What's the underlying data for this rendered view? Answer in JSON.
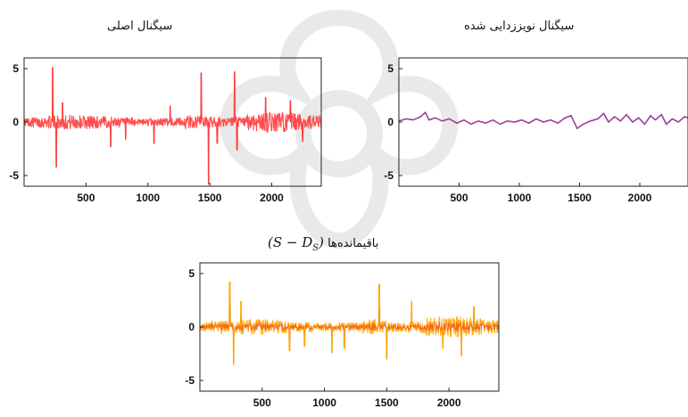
{
  "titles": {
    "original": "سیگنال اصلی",
    "denoised": "سیگنال نویززدایی شده",
    "residual_text": "باقیمانده‌ها",
    "residual_formula": "(S − D",
    "residual_formula_sub": "S",
    "residual_formula_close": ")"
  },
  "chart_data": [
    {
      "type": "line",
      "id": "original",
      "title": "سیگنال اصلی",
      "xticks": [
        500,
        1000,
        1500,
        2000
      ],
      "yticks": [
        -5,
        0,
        5
      ],
      "xlim": [
        0,
        2400
      ],
      "ylim": [
        -6,
        6
      ],
      "color": "#e8141c",
      "fill_color": "#ff3b3b",
      "noise_level": 0.7,
      "spikes": [
        {
          "x": 230,
          "y": 5.1
        },
        {
          "x": 260,
          "y": -4.2
        },
        {
          "x": 310,
          "y": 1.8
        },
        {
          "x": 700,
          "y": -2.3
        },
        {
          "x": 820,
          "y": -1.6
        },
        {
          "x": 1050,
          "y": -2.0
        },
        {
          "x": 1180,
          "y": 1.5
        },
        {
          "x": 1430,
          "y": 4.6
        },
        {
          "x": 1490,
          "y": -5.8
        },
        {
          "x": 1560,
          "y": -2.0
        },
        {
          "x": 1700,
          "y": 4.7
        },
        {
          "x": 1720,
          "y": -2.6
        },
        {
          "x": 1950,
          "y": 2.3
        },
        {
          "x": 2150,
          "y": 2.0
        },
        {
          "x": 2250,
          "y": -1.8
        }
      ]
    },
    {
      "type": "line",
      "id": "denoised",
      "title": "سیگنال نویززدایی شده",
      "xticks": [
        500,
        1000,
        1500,
        2000
      ],
      "yticks": [
        -5,
        0,
        5
      ],
      "xlim": [
        0,
        2400
      ],
      "ylim": [
        -6,
        6
      ],
      "color": "#9b3f98",
      "points": [
        [
          0,
          0.1
        ],
        [
          60,
          0.3
        ],
        [
          120,
          0.2
        ],
        [
          180,
          0.5
        ],
        [
          220,
          0.9
        ],
        [
          250,
          0.2
        ],
        [
          300,
          0.4
        ],
        [
          360,
          0.1
        ],
        [
          420,
          0.3
        ],
        [
          480,
          -0.1
        ],
        [
          540,
          0.2
        ],
        [
          600,
          -0.2
        ],
        [
          660,
          0.1
        ],
        [
          720,
          -0.1
        ],
        [
          780,
          0.2
        ],
        [
          840,
          -0.2
        ],
        [
          900,
          0.1
        ],
        [
          960,
          0.0
        ],
        [
          1020,
          0.2
        ],
        [
          1080,
          -0.1
        ],
        [
          1140,
          0.3
        ],
        [
          1200,
          0.0
        ],
        [
          1260,
          0.2
        ],
        [
          1320,
          -0.1
        ],
        [
          1380,
          0.4
        ],
        [
          1430,
          0.6
        ],
        [
          1480,
          -0.6
        ],
        [
          1530,
          -0.2
        ],
        [
          1590,
          0.1
        ],
        [
          1650,
          0.3
        ],
        [
          1700,
          0.8
        ],
        [
          1740,
          0.0
        ],
        [
          1790,
          0.5
        ],
        [
          1840,
          0.1
        ],
        [
          1890,
          0.7
        ],
        [
          1940,
          0.0
        ],
        [
          1990,
          0.4
        ],
        [
          2040,
          -0.2
        ],
        [
          2090,
          0.6
        ],
        [
          2130,
          0.2
        ],
        [
          2180,
          0.7
        ],
        [
          2220,
          -0.2
        ],
        [
          2270,
          0.3
        ],
        [
          2320,
          0.0
        ],
        [
          2370,
          0.5
        ],
        [
          2400,
          0.4
        ]
      ]
    },
    {
      "type": "line",
      "id": "residuals",
      "title": "باقیمانده‌ها (S − D_S)",
      "xticks": [
        500,
        1000,
        1500,
        2000
      ],
      "yticks": [
        -5,
        0,
        5
      ],
      "xlim": [
        0,
        2400
      ],
      "ylim": [
        -6,
        6
      ],
      "color": "#ffa500",
      "line_color": "#e8351c",
      "noise_level": 0.75,
      "spikes": [
        {
          "x": 240,
          "y": 4.2
        },
        {
          "x": 270,
          "y": -3.5
        },
        {
          "x": 330,
          "y": 2.4
        },
        {
          "x": 720,
          "y": -2.2
        },
        {
          "x": 840,
          "y": -1.8
        },
        {
          "x": 1060,
          "y": -2.4
        },
        {
          "x": 1160,
          "y": -2.0
        },
        {
          "x": 1440,
          "y": 4.0
        },
        {
          "x": 1500,
          "y": -3.0
        },
        {
          "x": 1700,
          "y": 2.4
        },
        {
          "x": 1950,
          "y": -2.0
        },
        {
          "x": 2100,
          "y": -2.7
        },
        {
          "x": 2200,
          "y": 1.9
        }
      ]
    }
  ]
}
